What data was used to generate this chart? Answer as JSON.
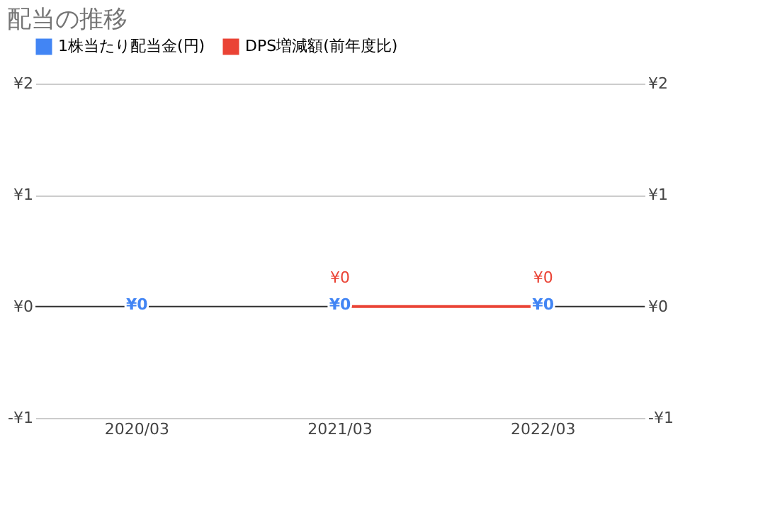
{
  "chart_data": {
    "type": "bar",
    "title": "配当の推移",
    "categories": [
      "2020/03",
      "2021/03",
      "2022/03"
    ],
    "series": [
      {
        "name": "1株当たり配当金(円)",
        "color": "#4285f4",
        "values": [
          0,
          0,
          0
        ],
        "value_labels": [
          "¥0",
          "¥0",
          "¥0"
        ]
      },
      {
        "name": "DPS増減額(前年度比)",
        "color": "#ea4335",
        "type": "line",
        "values": [
          null,
          0,
          0
        ],
        "value_labels": [
          null,
          "¥0",
          "¥0"
        ]
      }
    ],
    "ylim": [
      -1,
      2
    ],
    "yticks": [
      {
        "value": -1,
        "label": "-¥1"
      },
      {
        "value": 0,
        "label": "¥0"
      },
      {
        "value": 1,
        "label": "¥1"
      },
      {
        "value": 2,
        "label": "¥2"
      }
    ],
    "y2lim": [
      -1,
      2
    ],
    "y2ticks": [
      {
        "value": -1,
        "label": "-¥1"
      },
      {
        "value": 0,
        "label": "¥0"
      },
      {
        "value": 1,
        "label": "¥1"
      },
      {
        "value": 2,
        "label": "¥2"
      }
    ],
    "ref_lines": [
      {
        "axis": "y",
        "value": 0,
        "label": null,
        "color": "#333333"
      }
    ],
    "grid": "y",
    "legend": "top"
  }
}
